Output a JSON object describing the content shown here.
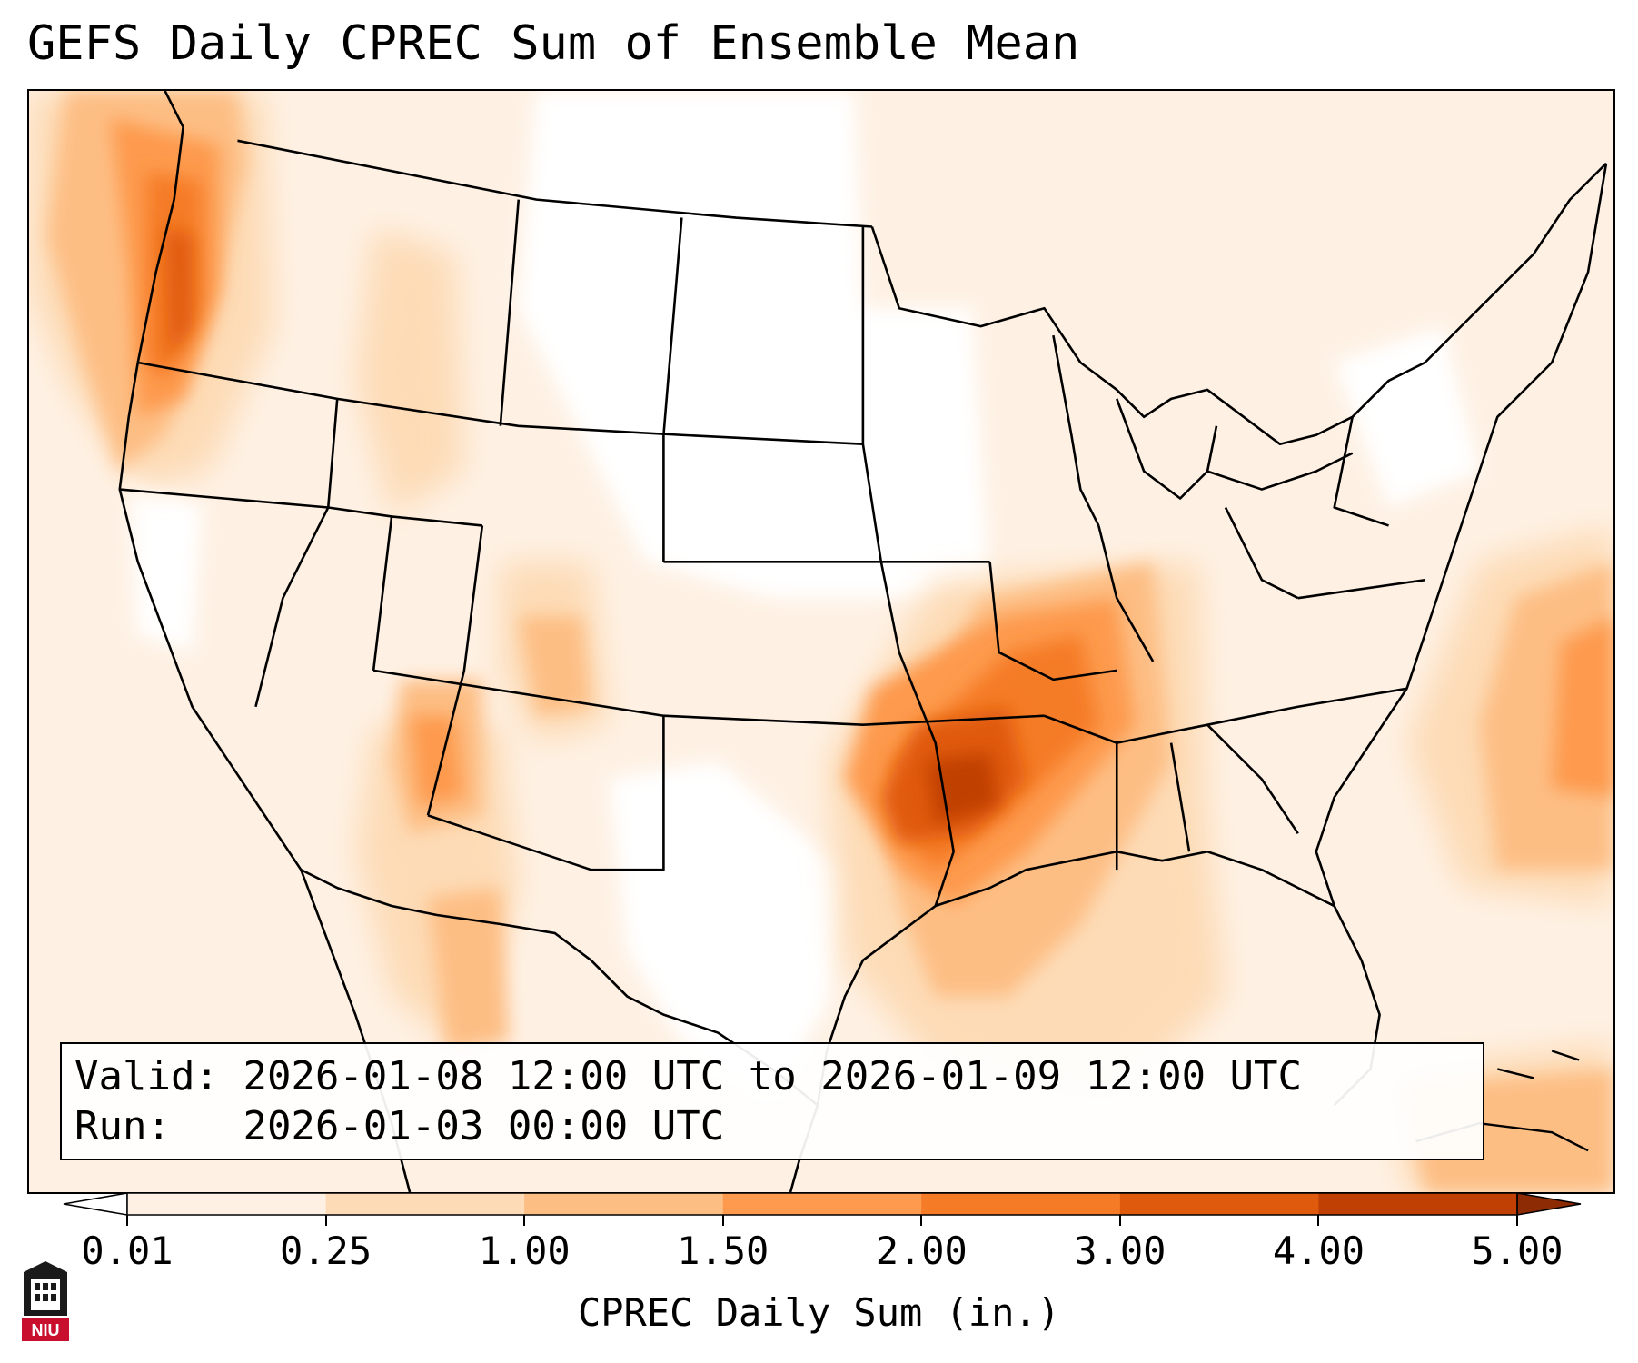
{
  "title": "GEFS Daily CPREC Sum of Ensemble Mean",
  "info": {
    "valid_label": "Valid:",
    "valid_value": "2026-01-08 12:00 UTC to 2026-01-09 12:00 UTC",
    "run_label": "Run:",
    "run_value": "2026-01-03 00:00 UTC"
  },
  "colorbar": {
    "label": "CPREC Daily Sum (in.)",
    "ticks": [
      "0.01",
      "0.25",
      "1.00",
      "1.50",
      "2.00",
      "3.00",
      "4.00",
      "5.00"
    ],
    "colors": [
      "#fef1e4",
      "#fddbb6",
      "#fdbe84",
      "#fd9a4e",
      "#f57b27",
      "#e05a0e",
      "#c03f03",
      "#8c2b04"
    ],
    "extend": "both"
  },
  "logo": {
    "text": "NIU",
    "color": "#c8102e"
  },
  "map": {
    "projection": "Lambert Conformal, CONUS",
    "colors": {
      "coast_state_lines": "#000000",
      "outside_map_background": "#ffffff"
    }
  }
}
